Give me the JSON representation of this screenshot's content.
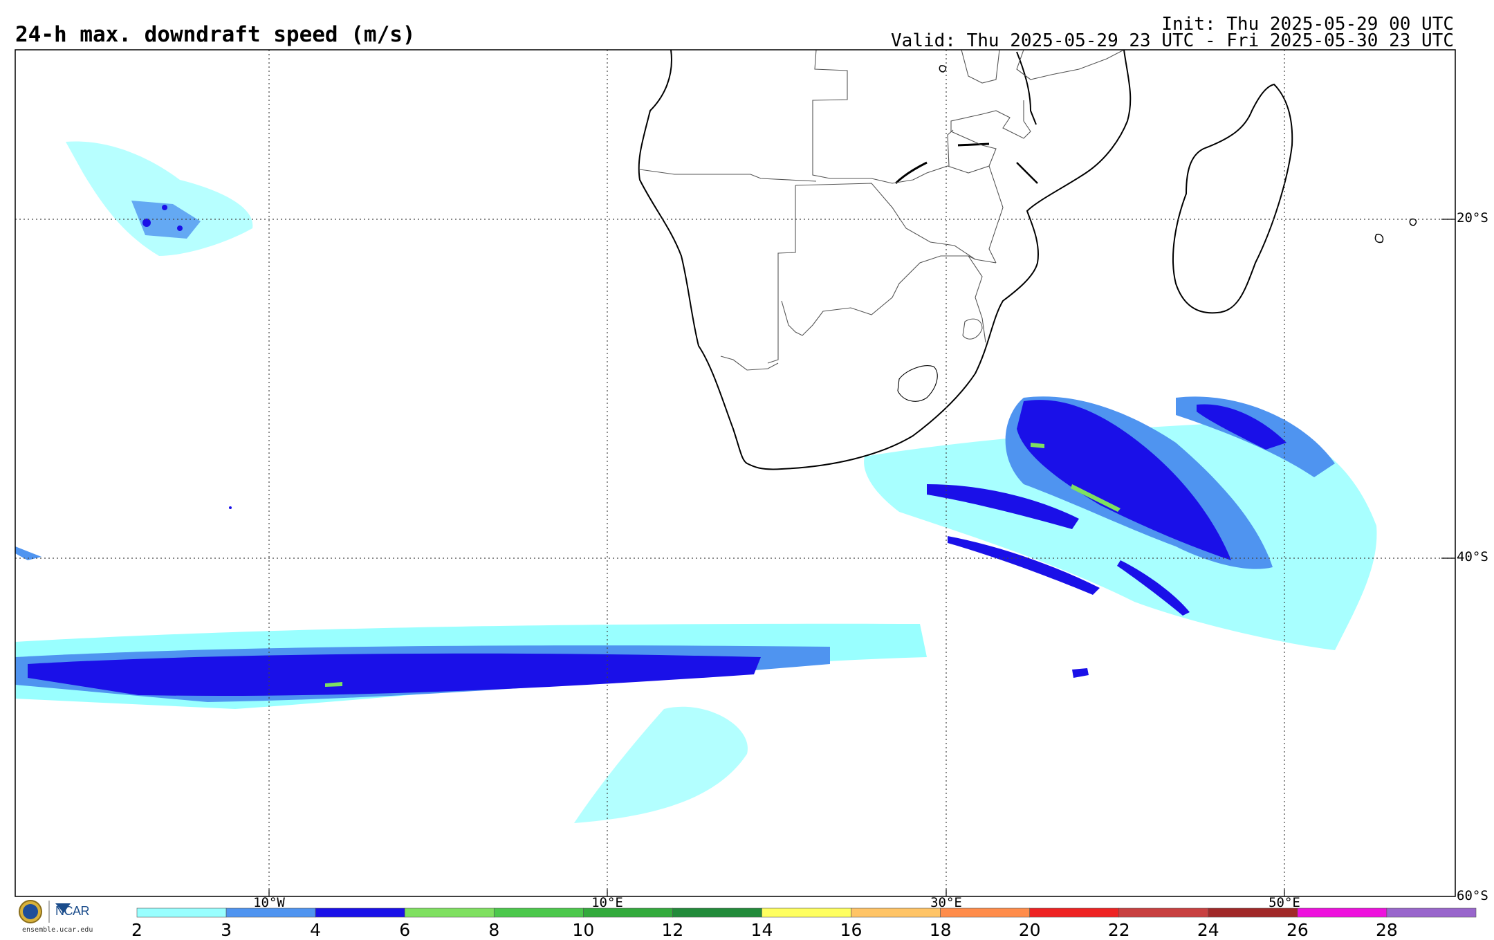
{
  "header": {
    "title": "24-h max. downdraft speed (m/s)",
    "init": "Init: Thu 2025-05-29 00 UTC",
    "valid": "Valid: Thu 2025-05-29 23 UTC - Fri 2025-05-30 23 UTC"
  },
  "map": {
    "extent": {
      "lon_min": -25,
      "lon_max": 60,
      "lat_min": -60,
      "lat_max": -10
    },
    "grid_lons": [
      -10,
      10,
      30,
      50
    ],
    "grid_lats": [
      -20,
      -40,
      -60
    ],
    "lat_labels": [
      "20°S",
      "40°S",
      "60°S"
    ],
    "lon_labels": [
      "10°W",
      "10°E",
      "30°E",
      "50°E"
    ]
  },
  "colorbar": {
    "ticks": [
      "2",
      "3",
      "4",
      "6",
      "8",
      "10",
      "12",
      "14",
      "16",
      "18",
      "20",
      "22",
      "24",
      "26",
      "28"
    ],
    "colors": [
      "#99ffff",
      "#4f94f0",
      "#1a10e8",
      "#7fe060",
      "#4cc84c",
      "#33aa3c",
      "#228b3a",
      "#ffff60",
      "#ffc466",
      "#ff8c4a",
      "#ee2222",
      "#c84040",
      "#a02828",
      "#ee10dd",
      "#9966cc"
    ]
  },
  "branding": {
    "logo_text": "NCAR",
    "url": "ensemble.ucar.edu"
  }
}
